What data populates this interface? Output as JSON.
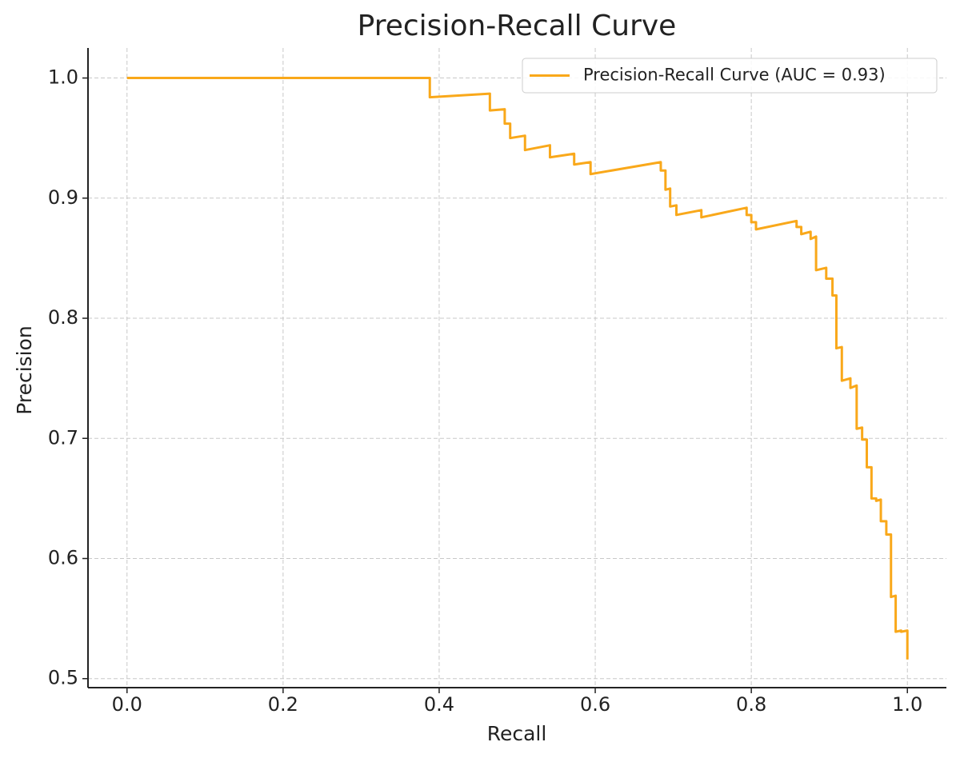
{
  "chart_data": {
    "type": "line",
    "title": "Precision-Recall Curve",
    "x_label": "Recall",
    "y_label": "Precision",
    "xlim": [
      -0.05,
      1.05
    ],
    "ylim": [
      0.4925,
      1.025
    ],
    "xticks": [
      {
        "value": 0,
        "label": "0.0"
      },
      0.2,
      0.4,
      0.6,
      0.8,
      {
        "value": 1,
        "label": "1.0"
      }
    ],
    "yticks": [
      {
        "value": 0.5,
        "label": "0.5"
      },
      {
        "value": 0.6,
        "label": "0.6"
      },
      {
        "value": 0.7,
        "label": "0.7"
      },
      {
        "value": 0.8,
        "label": "0.8"
      },
      {
        "value": 0.9,
        "label": "0.9"
      },
      {
        "value": 1,
        "label": "1.0"
      }
    ],
    "grid": true,
    "legend": "upper right",
    "series": [
      {
        "name": "Precision-Recall Curve (AUC = 0.93)",
        "color": "#f9a81a",
        "x": [
          0,
          0.388,
          0.388,
          0.465,
          0.465,
          0.484,
          0.484,
          0.491,
          0.491,
          0.51,
          0.51,
          0.542,
          0.542,
          0.573,
          0.573,
          0.594,
          0.594,
          0.684,
          0.684,
          0.69,
          0.69,
          0.696,
          0.696,
          0.704,
          0.704,
          0.736,
          0.736,
          0.794,
          0.794,
          0.8,
          0.8,
          0.806,
          0.806,
          0.858,
          0.858,
          0.864,
          0.864,
          0.876,
          0.876,
          0.883,
          0.883,
          0.896,
          0.896,
          0.904,
          0.904,
          0.909,
          0.909,
          0.916,
          0.916,
          0.927,
          0.927,
          0.935,
          0.935,
          0.942,
          0.942,
          0.948,
          0.948,
          0.954,
          0.954,
          0.96,
          0.96,
          0.966,
          0.966,
          0.973,
          0.973,
          0.979,
          0.979,
          0.985,
          0.985,
          0.992,
          0.992,
          1.0,
          1.0
        ],
        "values": [
          1.0,
          1.0,
          0.984,
          0.987,
          0.973,
          0.974,
          0.962,
          0.962,
          0.95,
          0.952,
          0.94,
          0.944,
          0.934,
          0.937,
          0.928,
          0.93,
          0.92,
          0.93,
          0.923,
          0.923,
          0.907,
          0.908,
          0.893,
          0.894,
          0.886,
          0.89,
          0.884,
          0.892,
          0.886,
          0.886,
          0.88,
          0.88,
          0.874,
          0.881,
          0.876,
          0.876,
          0.87,
          0.872,
          0.866,
          0.868,
          0.84,
          0.842,
          0.833,
          0.833,
          0.819,
          0.819,
          0.775,
          0.776,
          0.748,
          0.75,
          0.742,
          0.744,
          0.708,
          0.709,
          0.699,
          0.699,
          0.676,
          0.676,
          0.65,
          0.65,
          0.648,
          0.649,
          0.631,
          0.631,
          0.62,
          0.62,
          0.568,
          0.569,
          0.539,
          0.54,
          0.539,
          0.54,
          0.516
        ]
      }
    ]
  }
}
